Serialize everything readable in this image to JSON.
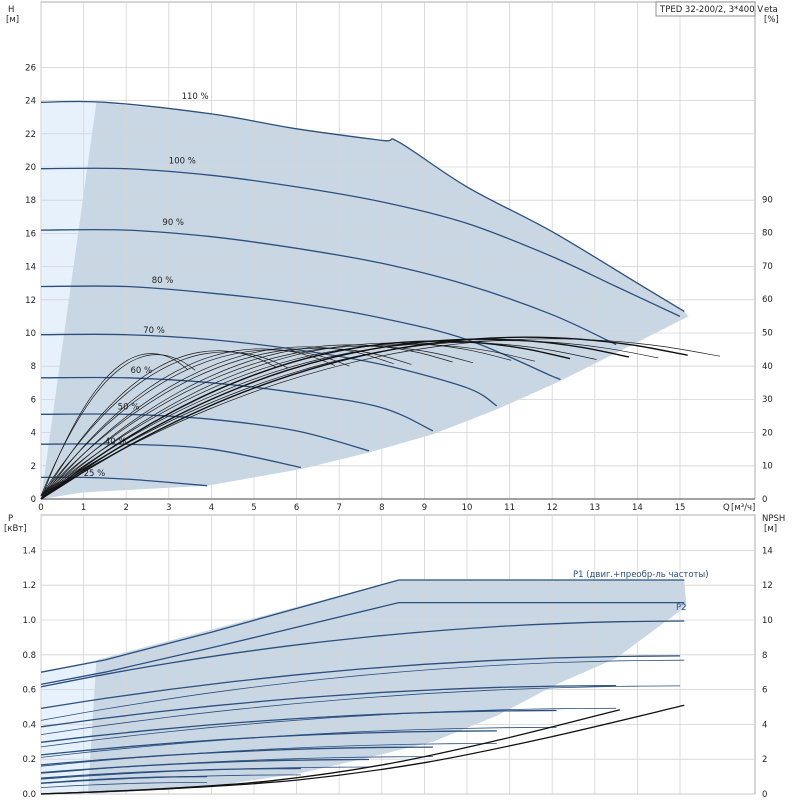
{
  "chart_data": [
    {
      "type": "line",
      "title": "TPED 32-200/2, 3*400 V",
      "xlabel": "Q [м³/ч]",
      "ylabel": "H [м]",
      "y2label": "eta [%]",
      "x_axis": {
        "label": "Q",
        "unit": "[м³/ч]",
        "min": 0,
        "max": 16.5,
        "ticks": [
          0,
          1,
          2,
          3,
          4,
          5,
          6,
          7,
          8,
          9,
          10,
          11,
          12,
          13,
          14,
          15
        ]
      },
      "y_axis": {
        "label": "H",
        "unit": "[м]",
        "min": 0,
        "max": 30,
        "ticks": [
          0,
          2,
          4,
          6,
          8,
          10,
          12,
          14,
          16,
          18,
          20,
          22,
          24,
          26
        ]
      },
      "y2_axis": {
        "label": "eta",
        "unit": "[%]",
        "min": 0,
        "max": 100,
        "ticks": [
          0,
          10,
          20,
          30,
          40,
          50,
          60,
          70,
          80,
          90
        ]
      },
      "speed_labels": [
        {
          "text": "110 %",
          "x": 3.3,
          "y": 24.1
        },
        {
          "text": "100 %",
          "x": 3.0,
          "y": 20.2
        },
        {
          "text": "90 %",
          "x": 2.85,
          "y": 16.5
        },
        {
          "text": "80 %",
          "x": 2.6,
          "y": 13.0
        },
        {
          "text": "70 %",
          "x": 2.4,
          "y": 10.0
        },
        {
          "text": "60 %",
          "x": 2.1,
          "y": 7.6
        },
        {
          "text": "50 %",
          "x": 1.8,
          "y": 5.4
        },
        {
          "text": "40 %",
          "x": 1.5,
          "y": 3.3
        },
        {
          "text": "25 %",
          "x": 1.0,
          "y": 1.4
        }
      ],
      "series": [
        {
          "name": "110 %",
          "x": [
            0,
            1.5,
            4,
            6,
            8,
            8.4,
            10,
            12,
            14,
            15.1
          ],
          "y": [
            23.9,
            23.9,
            23.2,
            22.3,
            21.6,
            21.5,
            18.8,
            16.1,
            13.0,
            11.3
          ]
        },
        {
          "name": "100 %",
          "x": [
            0,
            2,
            4,
            6,
            8,
            10,
            12,
            13.5,
            15.0
          ],
          "y": [
            19.9,
            19.9,
            19.5,
            18.8,
            17.9,
            16.6,
            14.6,
            12.8,
            11.0
          ]
        },
        {
          "name": "90 %",
          "x": [
            0,
            2,
            4,
            6,
            8,
            10,
            12,
            13.5
          ],
          "y": [
            16.2,
            16.2,
            15.8,
            15.1,
            14.2,
            12.9,
            11.1,
            9.3
          ]
        },
        {
          "name": "80 %",
          "x": [
            0,
            2,
            4,
            6,
            8,
            10,
            12,
            12.1
          ],
          "y": [
            12.8,
            12.8,
            12.4,
            11.8,
            10.9,
            9.6,
            7.4,
            7.3
          ]
        },
        {
          "name": "70 %",
          "x": [
            0,
            2,
            4,
            6,
            8,
            10,
            10.7
          ],
          "y": [
            9.9,
            9.9,
            9.6,
            9.0,
            8.1,
            6.7,
            5.6
          ]
        },
        {
          "name": "60 %",
          "x": [
            0,
            2,
            4,
            6,
            8,
            9.2
          ],
          "y": [
            7.3,
            7.3,
            7.0,
            6.4,
            5.5,
            4.1
          ]
        },
        {
          "name": "50 %",
          "x": [
            0,
            2,
            4,
            6,
            7.7
          ],
          "y": [
            5.1,
            5.1,
            4.8,
            4.1,
            2.9
          ]
        },
        {
          "name": "40 %",
          "x": [
            0,
            2,
            4,
            6.1
          ],
          "y": [
            3.3,
            3.3,
            3.0,
            1.9
          ]
        },
        {
          "name": "25 %",
          "x": [
            0,
            1,
            2,
            3,
            3.9
          ],
          "y": [
            1.3,
            1.3,
            1.2,
            1.0,
            0.8
          ]
        }
      ]
    },
    {
      "type": "line",
      "xlabel": "Q [м³/ч]",
      "ylabel": "P [кВт]",
      "y2label": "NPSH [м]",
      "y_axis": {
        "label": "P",
        "unit": "[кВт]",
        "min": 0,
        "max": 1.6,
        "ticks": [
          0,
          0.2,
          0.4,
          0.6,
          0.8,
          1.0,
          1.2,
          1.4
        ]
      },
      "y2_axis": {
        "label": "NPSH",
        "unit": "[м]",
        "min": 0,
        "max": 16,
        "ticks": [
          0,
          2,
          4,
          6,
          8,
          10,
          12,
          14
        ]
      },
      "series": [
        {
          "name": "P1 (двиг.+преобр-ль частоты)",
          "x": [
            0,
            1.5,
            4,
            8.4,
            15.1
          ],
          "y": [
            0.7,
            0.77,
            0.93,
            1.23,
            1.23
          ]
        },
        {
          "name": "P2",
          "x": [
            0,
            1.5,
            4,
            8.4,
            15.1
          ],
          "y": [
            0.63,
            0.7,
            0.84,
            1.1,
            1.1
          ]
        },
        {
          "name": "NPSH",
          "x": [
            0,
            3,
            6,
            9,
            12,
            15.1
          ],
          "y": [
            0.0,
            0.3,
            0.8,
            1.8,
            3.3,
            5.1
          ]
        }
      ]
    }
  ],
  "labels": {
    "title": "TPED 32-200/2, 3*400 V",
    "h_axis": "H",
    "h_unit": "[м]",
    "eta_axis": "eta",
    "eta_unit": "[%]",
    "q_axis": "Q",
    "q_unit": "[м³/ч]",
    "p_axis": "P",
    "p_unit": "[кВт]",
    "npsh_axis": "NPSH",
    "npsh_unit": "[м]",
    "p1_label": "P1 (двиг.+преобр-ль частоты)",
    "p2_label": "P2"
  },
  "colors": {
    "curve": "#2b4f7e",
    "band": "#c9d7e5",
    "band_light": "#e6f1fc",
    "eta": "#1a1a1a"
  }
}
